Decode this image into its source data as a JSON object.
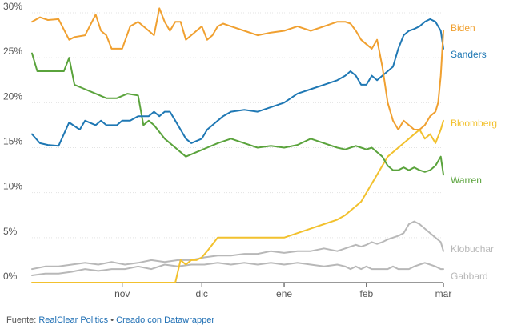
{
  "chart_data": {
    "type": "line",
    "title": "",
    "xlabel": "",
    "ylabel": "",
    "ylim": [
      0,
      30
    ],
    "y_ticks": [
      0,
      5,
      10,
      15,
      20,
      25,
      30
    ],
    "y_tick_labels": [
      "0%",
      "5%",
      "10%",
      "15%",
      "20%",
      "25%",
      "30%"
    ],
    "x_tick_labels": [
      "nov",
      "dic",
      "ene",
      "feb",
      "mar"
    ],
    "x_tick_days": [
      34,
      64,
      95,
      126,
      155
    ],
    "x_range_days": [
      0,
      155
    ],
    "legend": "direct-labels-right",
    "grid": true,
    "series": [
      {
        "name": "Biden",
        "color": "#f0a030",
        "x": [
          0,
          3,
          6,
          10,
          14,
          16,
          20,
          24,
          26,
          28,
          30,
          32,
          34,
          37,
          40,
          44,
          46,
          48,
          50,
          52,
          54,
          56,
          58,
          60,
          62,
          64,
          66,
          68,
          70,
          72,
          75,
          80,
          85,
          90,
          95,
          100,
          105,
          110,
          115,
          118,
          120,
          122,
          124,
          126,
          128,
          130,
          132,
          134,
          136,
          138,
          140,
          142,
          144,
          146,
          148,
          150,
          152,
          153,
          154,
          155
        ],
        "values": [
          29,
          29.5,
          29.2,
          29.3,
          27,
          27.3,
          27.5,
          29.8,
          28,
          27.5,
          26,
          26,
          26,
          28.5,
          29,
          28,
          27.5,
          30.5,
          29,
          28,
          29,
          29,
          27,
          27.5,
          28,
          28.5,
          27,
          27.5,
          28.5,
          28.8,
          28.5,
          28,
          27.5,
          27.8,
          28,
          28.5,
          28,
          28.5,
          29,
          29,
          28.8,
          28,
          27,
          26.5,
          26,
          27,
          24,
          20,
          18,
          17,
          18,
          17.5,
          17,
          17,
          17.5,
          18.5,
          19,
          20,
          23,
          28
        ]
      },
      {
        "name": "Sanders",
        "color": "#1f78b4",
        "x": [
          0,
          3,
          6,
          10,
          14,
          18,
          20,
          24,
          26,
          28,
          32,
          34,
          37,
          40,
          44,
          46,
          48,
          50,
          52,
          54,
          56,
          58,
          60,
          64,
          66,
          68,
          70,
          72,
          75,
          80,
          85,
          90,
          95,
          100,
          105,
          110,
          115,
          118,
          120,
          122,
          124,
          126,
          128,
          130,
          132,
          134,
          136,
          138,
          140,
          142,
          144,
          146,
          148,
          150,
          152,
          153,
          154,
          155
        ],
        "values": [
          16.5,
          15.5,
          15.3,
          15.2,
          17.8,
          17,
          18,
          17.5,
          18,
          17.5,
          17.5,
          18,
          18,
          18.5,
          18.5,
          19,
          18.5,
          19,
          19,
          18,
          17,
          16,
          15.5,
          16,
          17,
          17.5,
          18,
          18.5,
          19,
          19.2,
          19,
          19.5,
          20,
          21,
          21.5,
          22,
          22.5,
          23,
          23.5,
          23,
          22,
          22,
          23,
          22.5,
          23,
          23.5,
          24,
          26,
          27.5,
          28,
          28.2,
          28.5,
          29,
          29.3,
          29,
          28.5,
          28,
          26
        ]
      },
      {
        "name": "Bloomberg",
        "color": "#f2c12e",
        "x": [
          0,
          20,
          30,
          32,
          36,
          40,
          44,
          46,
          48,
          50,
          52,
          54,
          56,
          58,
          60,
          62,
          64,
          66,
          70,
          75,
          80,
          85,
          90,
          95,
          100,
          105,
          110,
          115,
          118,
          120,
          122,
          124,
          126,
          128,
          130,
          132,
          134,
          136,
          138,
          140,
          142,
          144,
          146,
          148,
          150,
          152,
          154,
          155
        ],
        "values": [
          0,
          0,
          0,
          0,
          0,
          0,
          0,
          0,
          0,
          0,
          0,
          0,
          2.5,
          2,
          2.5,
          2.5,
          2.8,
          3.5,
          5,
          5,
          5,
          5,
          5,
          5,
          5.5,
          6,
          6.5,
          7,
          7.5,
          8,
          8.5,
          9,
          10,
          11,
          12,
          13,
          14,
          14.5,
          15,
          15.5,
          16,
          16.5,
          17,
          16,
          16.5,
          15.5,
          17,
          18
        ]
      },
      {
        "name": "Warren",
        "color": "#5aa33c",
        "x": [
          0,
          2,
          6,
          10,
          12,
          14,
          16,
          20,
          24,
          28,
          32,
          36,
          40,
          42,
          44,
          46,
          50,
          54,
          58,
          62,
          66,
          70,
          75,
          80,
          85,
          90,
          95,
          100,
          105,
          110,
          115,
          118,
          120,
          122,
          124,
          126,
          128,
          130,
          132,
          134,
          136,
          138,
          140,
          142,
          144,
          146,
          148,
          150,
          152,
          154,
          155
        ],
        "values": [
          25.5,
          23.5,
          23.5,
          23.5,
          23.5,
          25,
          22,
          21.5,
          21,
          20.5,
          20.5,
          21,
          20.8,
          17.5,
          18,
          17.5,
          16,
          15,
          14,
          14.5,
          15,
          15.5,
          16,
          15.5,
          15,
          15.2,
          15,
          15.3,
          16,
          15.5,
          15,
          14.8,
          15,
          15.2,
          15,
          14.8,
          15,
          14.5,
          14,
          13,
          12.5,
          12.5,
          12.8,
          12.5,
          12.8,
          12.5,
          12.3,
          12.5,
          13,
          14,
          12
        ]
      },
      {
        "name": "Klobuchar",
        "color": "#b8b8b8",
        "x": [
          0,
          5,
          10,
          15,
          20,
          25,
          30,
          35,
          40,
          45,
          50,
          55,
          60,
          65,
          70,
          75,
          80,
          85,
          90,
          95,
          100,
          105,
          110,
          115,
          118,
          120,
          122,
          124,
          126,
          128,
          130,
          132,
          134,
          136,
          138,
          140,
          142,
          144,
          146,
          148,
          150,
          152,
          154,
          155
        ],
        "values": [
          1.5,
          1.8,
          1.8,
          2,
          2.2,
          2,
          2.3,
          2,
          2.2,
          2.5,
          2.3,
          2.5,
          2.5,
          2.8,
          3,
          3,
          3.2,
          3.2,
          3.5,
          3.3,
          3.5,
          3.5,
          3.8,
          3.5,
          3.8,
          4,
          4.2,
          4,
          4.2,
          4.5,
          4.3,
          4.5,
          4.8,
          5,
          5.2,
          5.5,
          6.5,
          6.8,
          6.5,
          6,
          5.5,
          5,
          4.5,
          3.5
        ]
      },
      {
        "name": "Gabbard",
        "color": "#b8b8b8",
        "x": [
          0,
          5,
          10,
          15,
          20,
          25,
          30,
          35,
          40,
          45,
          50,
          55,
          60,
          65,
          70,
          75,
          80,
          85,
          90,
          95,
          100,
          105,
          110,
          115,
          118,
          120,
          122,
          124,
          126,
          128,
          130,
          132,
          134,
          136,
          138,
          140,
          142,
          144,
          146,
          148,
          150,
          152,
          154,
          155
        ],
        "values": [
          0.8,
          1,
          1,
          1.2,
          1.5,
          1.3,
          1.5,
          1.5,
          1.8,
          1.5,
          2,
          1.8,
          2,
          2,
          2.2,
          2,
          2.2,
          2,
          2.2,
          2,
          2.2,
          2,
          1.8,
          2,
          1.8,
          1.5,
          1.8,
          1.5,
          1.8,
          1.5,
          1.5,
          1.5,
          1.5,
          1.8,
          1.5,
          1.5,
          1.5,
          1.8,
          2,
          2.2,
          2,
          1.8,
          1.5,
          1.5
        ]
      }
    ]
  },
  "footer": {
    "prefix": "Fuente: ",
    "source": "RealClear Politics",
    "separator": " • ",
    "credit": "Creado con Datawrapper"
  }
}
